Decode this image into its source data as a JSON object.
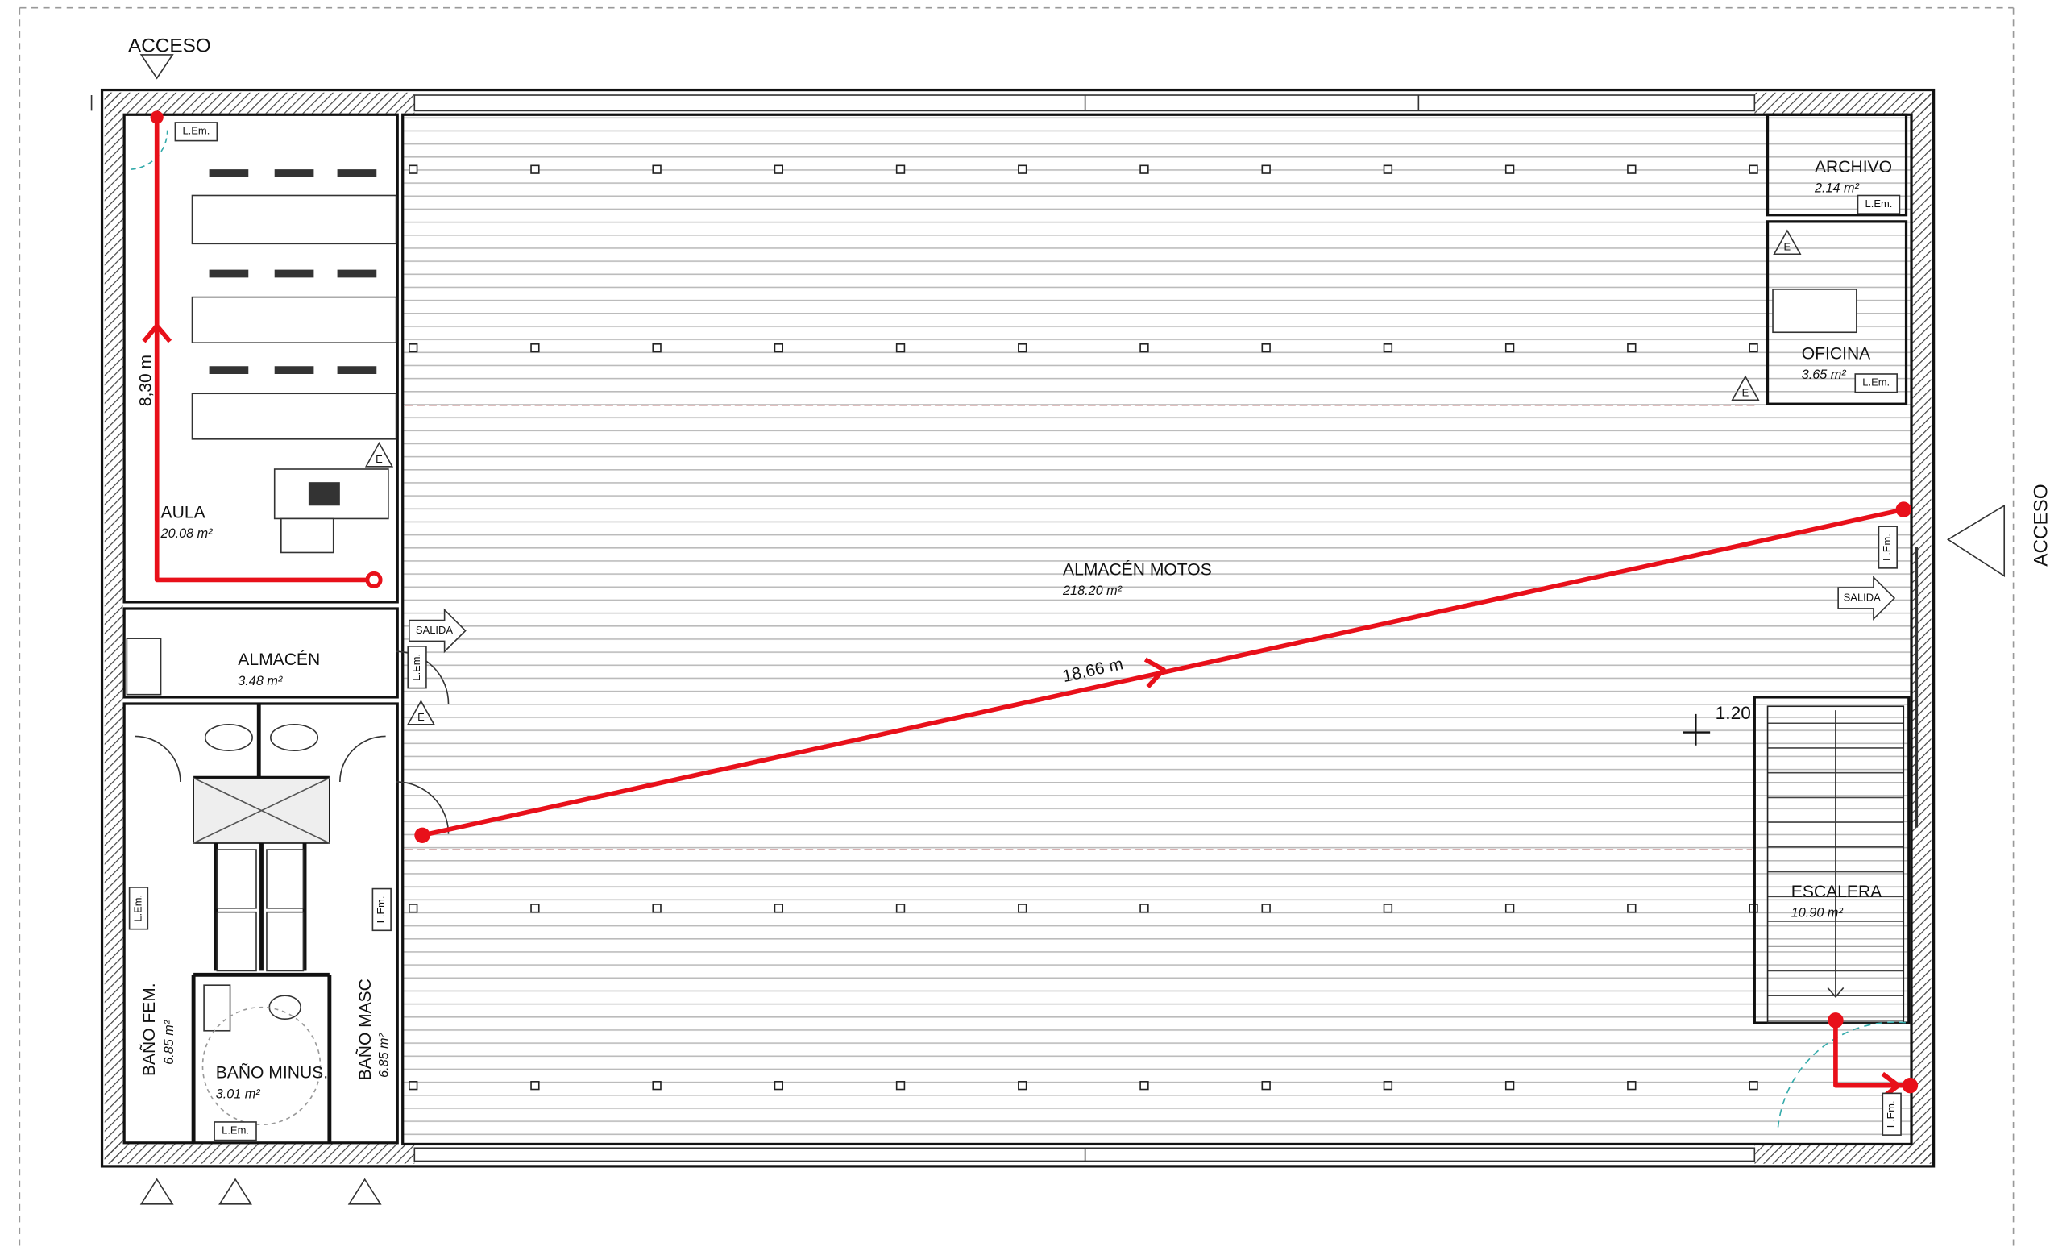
{
  "access_labels": [
    "ACCESO",
    "ACCESO"
  ],
  "rooms": [
    {
      "name": "AULA",
      "area": "20.08 m²"
    },
    {
      "name": "ALMACÉN",
      "area": "3.48 m²"
    },
    {
      "name": "ALMACÉN MOTOS",
      "area": "218.20 m²"
    },
    {
      "name": "ARCHIVO",
      "area": "2.14 m²"
    },
    {
      "name": "OFICINA",
      "area": "3.65 m²"
    },
    {
      "name": "ESCALERA",
      "area": "10.90 m²"
    },
    {
      "name": "BAÑO FEM.",
      "area": "6.85 m²"
    },
    {
      "name": "BAÑO MINUS.",
      "area": "3.01 m²"
    },
    {
      "name": "BAÑO MASC",
      "area": "6.85 m²"
    }
  ],
  "routes": [
    {
      "length": "8,30 m"
    },
    {
      "length": "18,66 m"
    }
  ],
  "exit_signs": [
    "SALIDA",
    "SALIDA"
  ],
  "extinguishers": [
    "E",
    "E",
    "E",
    "E"
  ],
  "emergency_lights": [
    "L.Em.",
    "L.Em.",
    "L.Em.",
    "L.Em.",
    "L.Em.",
    "L.Em.",
    "L.Em.",
    "L.Em.",
    "L.Em."
  ],
  "stair_width": "1.20"
}
